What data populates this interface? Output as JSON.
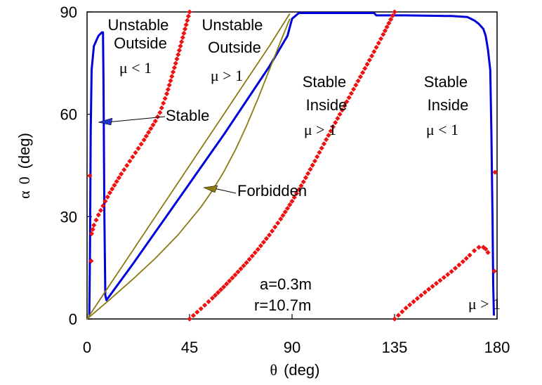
{
  "chart_data": {
    "type": "scatter",
    "xlabel": {
      "symbol": "θ",
      "text": "(deg)"
    },
    "ylabel": {
      "symbol": "α",
      "subscript": "0",
      "text": "(deg)"
    },
    "xlim": [
      0,
      180
    ],
    "ylim": [
      0,
      90
    ],
    "xticks": [
      "0",
      "45",
      "90",
      "135",
      "180"
    ],
    "yticks": [
      "0",
      "30",
      "60",
      "90"
    ],
    "grid": false,
    "colors": {
      "blue": "#0000dd",
      "red": "#ee1111",
      "olive": "#8a7a10",
      "arrow_blue": "#2233cc"
    },
    "series": [
      {
        "style": "line",
        "color": "blue",
        "x": [
          1.0,
          1.3,
          1.6,
          2.0,
          3.0,
          5.0,
          6.5,
          7.0,
          7.2,
          7.6,
          8.0,
          8.5,
          20,
          40,
          60,
          80,
          88,
          90,
          93,
          100,
          110,
          120,
          126,
          127,
          140,
          160,
          167,
          170,
          172,
          174,
          175,
          176,
          177,
          177.5,
          178,
          178.3,
          178.6
        ],
        "y": [
          1,
          20,
          55,
          73,
          80,
          83,
          84,
          84,
          70,
          30,
          7,
          5.5,
          16,
          35,
          54,
          74,
          83,
          88,
          89.7,
          89.7,
          89.7,
          89.7,
          89.7,
          89.0,
          89.0,
          88.8,
          88.5,
          87.5,
          86.5,
          85,
          83,
          79,
          73,
          55,
          30,
          10,
          1
        ]
      },
      {
        "style": "line",
        "color": "olive",
        "x": [
          0,
          10,
          20,
          30,
          40,
          50,
          60,
          70,
          80,
          89
        ],
        "y": [
          0,
          10,
          20,
          30,
          40,
          50,
          60,
          70,
          80,
          89.5
        ]
      },
      {
        "style": "line",
        "color": "olive",
        "x": [
          0,
          10,
          20,
          30,
          40,
          50,
          55,
          60,
          65,
          70,
          75,
          80,
          85,
          89
        ],
        "y": [
          0,
          5.7,
          11.6,
          17.8,
          24.7,
          32.8,
          37.6,
          43.1,
          49.4,
          56.6,
          64.5,
          73.0,
          81.4,
          88
        ]
      },
      {
        "style": "points",
        "color": "red",
        "x": [
          2.0,
          3,
          5,
          8,
          10,
          15,
          20,
          25,
          30,
          32,
          35,
          40,
          45
        ],
        "y": [
          25,
          27.5,
          30.5,
          34.5,
          37,
          42.5,
          47.5,
          52.5,
          58,
          60.5,
          66,
          77.5,
          90
        ]
      },
      {
        "style": "points",
        "color": "red",
        "x": [
          45,
          50,
          55,
          60,
          65,
          70,
          75,
          80,
          85,
          90,
          95,
          100,
          105,
          110,
          115,
          120,
          125,
          130,
          135
        ],
        "y": [
          0,
          3,
          6.1,
          9.4,
          12.9,
          16.5,
          20.4,
          24.6,
          29.3,
          34.5,
          40.2,
          46.3,
          52.6,
          58.8,
          64.9,
          71.0,
          77.1,
          83.4,
          90
        ]
      },
      {
        "style": "points",
        "color": "red",
        "x": [
          135,
          140,
          145,
          150,
          155,
          160,
          165,
          168,
          170,
          172,
          174,
          175,
          176
        ],
        "y": [
          0,
          3.2,
          6.0,
          8.7,
          11.3,
          13.9,
          16.8,
          18.7,
          20.0,
          21.0,
          21.0,
          20.5,
          19.5
        ]
      },
      {
        "style": "points",
        "color": "red",
        "x": [
          1.2,
          1.8,
          178.8,
          179.1
        ],
        "y": [
          42,
          17,
          14,
          43
        ]
      }
    ],
    "annotations": [
      {
        "id": "uo1",
        "lines": [
          "Unstable",
          "Outside"
        ]
      },
      {
        "id": "mu1",
        "text": "μ < 1"
      },
      {
        "id": "uo2",
        "lines": [
          "Unstable",
          "Outside"
        ]
      },
      {
        "id": "mu2",
        "text": "μ > 1"
      },
      {
        "id": "si1",
        "lines": [
          "Stable",
          "Inside"
        ]
      },
      {
        "id": "mu3",
        "text": "μ > 1"
      },
      {
        "id": "si2",
        "lines": [
          "Stable",
          "Inside"
        ]
      },
      {
        "id": "mu4",
        "text": "μ < 1"
      },
      {
        "id": "stable",
        "text": "Stable"
      },
      {
        "id": "forbidden",
        "text": "Forbidden"
      },
      {
        "id": "a_param",
        "text": "a=0.3m"
      },
      {
        "id": "r_param",
        "text": "r=10.7m"
      },
      {
        "id": "mu5",
        "text": "μ > 1"
      }
    ]
  }
}
